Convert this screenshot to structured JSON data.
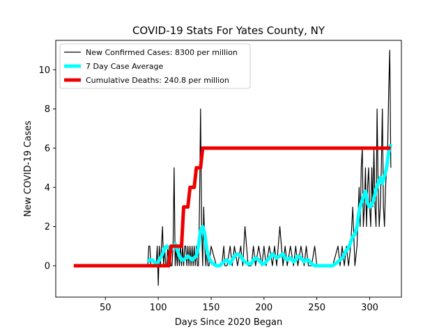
{
  "chart_data": {
    "type": "line",
    "title": "COVID-19 Stats For Yates County, NY",
    "xlabel": "Days Since 2020 Began",
    "ylabel": "New COVID-19 Cases",
    "xlim": [
      3,
      330
    ],
    "ylim": [
      -1.6,
      11.5
    ],
    "xticks": [
      50,
      100,
      150,
      200,
      250,
      300
    ],
    "yticks": [
      0,
      2,
      4,
      6,
      8,
      10
    ],
    "grid": false,
    "legend_position": "top-left",
    "series": [
      {
        "name": "New Confirmed Cases: 8300 per million",
        "color": "#000000",
        "x": [
          90,
          91,
          92,
          93,
          94,
          95,
          96,
          97,
          98,
          99,
          100,
          101,
          102,
          103,
          104,
          105,
          106,
          107,
          108,
          109,
          110,
          111,
          112,
          113,
          114,
          115,
          116,
          117,
          118,
          119,
          120,
          121,
          122,
          123,
          124,
          125,
          126,
          127,
          128,
          129,
          130,
          131,
          132,
          133,
          134,
          135,
          136,
          137,
          138,
          139,
          140,
          141,
          142,
          143,
          144,
          145,
          146,
          147,
          148,
          150,
          155,
          160,
          162,
          163,
          165,
          168,
          170,
          172,
          175,
          178,
          180,
          182,
          185,
          188,
          190,
          192,
          195,
          198,
          200,
          202,
          205,
          208,
          210,
          212,
          215,
          218,
          220,
          222,
          225,
          228,
          230,
          232,
          235,
          238,
          240,
          242,
          245,
          248,
          250,
          255,
          260,
          265,
          270,
          272,
          274,
          276,
          278,
          280,
          282,
          284,
          286,
          288,
          290,
          291,
          292,
          293,
          294,
          295,
          296,
          297,
          298,
          299,
          300,
          301,
          302,
          303,
          304,
          305,
          306,
          307,
          308,
          309,
          310,
          311,
          312,
          313,
          314,
          315,
          316,
          317,
          318,
          319,
          320
        ],
        "y": [
          0,
          1,
          1,
          0,
          0,
          0,
          0,
          0,
          0,
          1,
          -1,
          1,
          0,
          1,
          2,
          0,
          1,
          0,
          0,
          1,
          0,
          1,
          0,
          0,
          1,
          5,
          0,
          1,
          0,
          1,
          0,
          1,
          0,
          1,
          0,
          1,
          1,
          0,
          1,
          0,
          1,
          0,
          1,
          0,
          1,
          0,
          1,
          0,
          0,
          3,
          8,
          2,
          0,
          3,
          1,
          0,
          1,
          0,
          0,
          1,
          0,
          0,
          1,
          0,
          0,
          1,
          0,
          1,
          0,
          1,
          0,
          2,
          0,
          0,
          1,
          0,
          1,
          0,
          1,
          0,
          1,
          0,
          1,
          0,
          2,
          0,
          1,
          0,
          1,
          0,
          1,
          0,
          1,
          0,
          1,
          0,
          0,
          1,
          0,
          0,
          0,
          0,
          1,
          0,
          1,
          0,
          1,
          0,
          1,
          3,
          0,
          1,
          4,
          2,
          5,
          6,
          2,
          3,
          5,
          2,
          4,
          5,
          3,
          2,
          5,
          3,
          6,
          3,
          2,
          8,
          4,
          2,
          3,
          5,
          8,
          3,
          2,
          4,
          5,
          6,
          9,
          11,
          5
        ]
      },
      {
        "name": "7 Day Case Average",
        "color": "#00ffff",
        "x": [
          90,
          92,
          94,
          96,
          98,
          100,
          102,
          104,
          106,
          108,
          110,
          112,
          114,
          116,
          118,
          120,
          122,
          124,
          126,
          128,
          130,
          132,
          134,
          136,
          138,
          140,
          142,
          144,
          146,
          148,
          150,
          152,
          155,
          158,
          160,
          162,
          165,
          168,
          170,
          172,
          175,
          178,
          180,
          182,
          185,
          188,
          190,
          192,
          195,
          198,
          200,
          202,
          205,
          208,
          210,
          212,
          215,
          218,
          220,
          222,
          225,
          228,
          230,
          232,
          235,
          238,
          240,
          242,
          245,
          248,
          250,
          255,
          260,
          265,
          270,
          272,
          274,
          276,
          278,
          280,
          282,
          284,
          286,
          288,
          290,
          292,
          294,
          296,
          298,
          300,
          302,
          304,
          306,
          308,
          310,
          312,
          314,
          316,
          318,
          320
        ],
        "y": [
          0.2,
          0.3,
          0.3,
          0.2,
          0.1,
          0.2,
          0.4,
          0.6,
          0.9,
          1.0,
          0.9,
          0.8,
          1.0,
          1.1,
          0.8,
          0.5,
          0.3,
          0.3,
          0.4,
          0.5,
          0.4,
          0.3,
          0.4,
          0.5,
          1.0,
          1.8,
          2.0,
          1.6,
          0.8,
          0.4,
          0.2,
          0.1,
          0.0,
          0.0,
          0.1,
          0.2,
          0.3,
          0.1,
          0.3,
          0.5,
          0.6,
          0.5,
          0.3,
          0.2,
          0.1,
          0.1,
          0.3,
          0.4,
          0.3,
          0.1,
          0.1,
          0.2,
          0.4,
          0.6,
          0.5,
          0.4,
          0.5,
          0.6,
          0.4,
          0.3,
          0.4,
          0.2,
          0.3,
          0.5,
          0.4,
          0.2,
          0.3,
          0.3,
          0.1,
          0.0,
          0.0,
          0.0,
          0.0,
          0.0,
          0.2,
          0.3,
          0.4,
          0.6,
          0.8,
          0.9,
          1.2,
          1.5,
          1.6,
          2.0,
          2.8,
          3.2,
          3.5,
          3.8,
          3.2,
          3.0,
          3.1,
          3.4,
          3.9,
          4.2,
          4.5,
          4.2,
          4.6,
          5.0,
          5.8,
          6.2
        ]
      },
      {
        "name": "Cumulative Deaths: 240.8 per million",
        "color": "#ee0000",
        "x": [
          20,
          110,
          112,
          118,
          122,
          124,
          126,
          128,
          130,
          132,
          134,
          136,
          138,
          140,
          142,
          144,
          320
        ],
        "y": [
          0,
          0,
          1,
          1,
          1,
          3,
          3,
          3,
          4,
          4,
          4,
          5,
          5,
          5,
          6,
          6,
          6
        ]
      }
    ]
  }
}
